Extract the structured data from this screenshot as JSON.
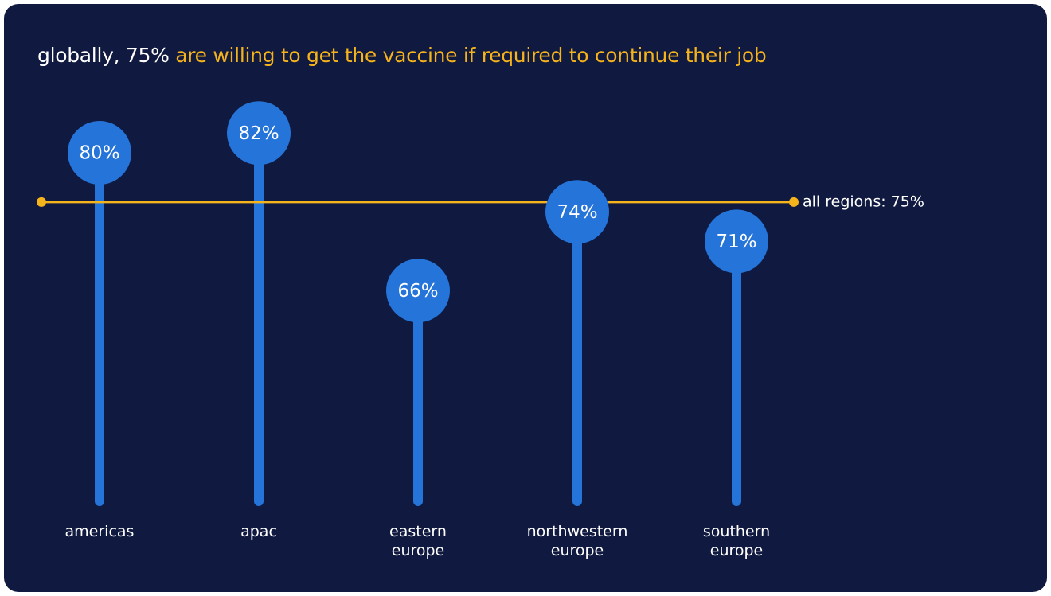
{
  "chart_data": {
    "type": "lollipop",
    "title": [
      "globally, 75% ",
      "are willing to get the vaccine if required to continue their job"
    ],
    "categories": [
      "americas",
      "apac",
      "eastern europe",
      "northwestern europe",
      "southern europe"
    ],
    "values": [
      80,
      82,
      66,
      74,
      71
    ],
    "value_labels": [
      "80%",
      "82%",
      "66%",
      "74%",
      "71%"
    ],
    "color": "#2574d9",
    "reference": {
      "value": 75,
      "label": "all regions: 75%",
      "color": "#f5b31c"
    }
  }
}
